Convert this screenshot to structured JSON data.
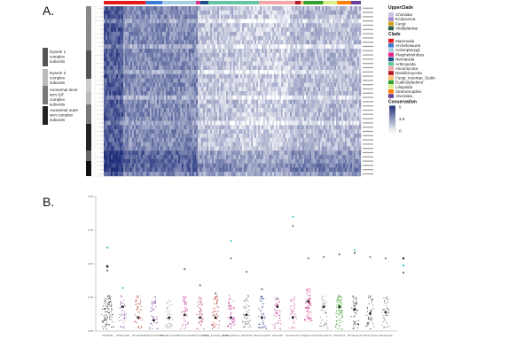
{
  "panels": {
    "a_label": "A.",
    "b_label": "B."
  },
  "chart_data": [
    {
      "type": "heatmap",
      "panel": "A.",
      "row_groups": [
        {
          "label": "Dynein 1 complex subunits",
          "shade": "#555555"
        },
        {
          "label": "Dynein 2 complex subunits",
          "shade": "#bbbbbb"
        },
        {
          "label": "Axonemal inner arm I1/f complex subunits",
          "shade": "#777777"
        },
        {
          "label": "Axonemal outer arm complex subunits",
          "shade": "#222222"
        }
      ],
      "column_clades": [
        "Mammalia",
        "Archelosauria",
        "Actinopterygii",
        "Platyhelminthes",
        "Nematoda",
        "Arthropoda",
        "Ascomycota",
        "Basidiomycota",
        "Fungi_Incertae_Sedis",
        "Eudicotyledons",
        "Liliopsida",
        "Stramenopiles",
        "Alveolata"
      ],
      "legend": {
        "upper_clade": {
          "title": "UpperClade",
          "items": [
            {
              "label": "Chordata",
              "color": "#c7c1df"
            },
            {
              "label": "Ecdysozoa",
              "color": "#a58fd0"
            },
            {
              "label": "Fungi",
              "color": "#d6a21c"
            },
            {
              "label": "Viridiplantae",
              "color": "#2e5f4f"
            }
          ]
        },
        "clade": {
          "title": "Clade",
          "items": [
            {
              "label": "Mammalia",
              "color": "#e31a1c"
            },
            {
              "label": "Archelosauria",
              "color": "#3a7bd5"
            },
            {
              "label": "Actinopterygii",
              "color": "#a6cee3"
            },
            {
              "label": "Platyhelminthes",
              "color": "#e7298a"
            },
            {
              "label": "Nematoda",
              "color": "#1f4e8c"
            },
            {
              "label": "Arthropoda",
              "color": "#66c2a5"
            },
            {
              "label": "Ascomycota",
              "color": "#f4a6a6"
            },
            {
              "label": "Basidiomycota",
              "color": "#b2182b"
            },
            {
              "label": "Fungi_Incertae_Sedis",
              "color": "#fdbf6f"
            },
            {
              "label": "Eudicotyledons",
              "color": "#33a02c"
            },
            {
              "label": "Liliopsida",
              "color": "#d9ef8b"
            },
            {
              "label": "Stramenopiles",
              "color": "#ff7f00"
            },
            {
              "label": "Alveolata",
              "color": "#6a3d9a"
            }
          ]
        },
        "conservation": {
          "title": "Conservation",
          "ticks": [
            "5",
            "3.5",
            "0"
          ],
          "low_color": "#ffffff",
          "high_color": "#1f2f7a"
        }
      }
    },
    {
      "type": "scatter",
      "panel": "B.",
      "categories": [
        "Chordata",
        "Arthropoda",
        "Nematoda",
        "Platyhelminthes",
        "Basidiomycota",
        "Ascomycota",
        "Microsporidia",
        "Fungi_Incertae_Sedis",
        "Eudicotyledons",
        "Liliopsida",
        "Stramenopiles",
        "Alveolata",
        "Amoebozoa",
        "Euglenozoa",
        "Apicomplexa",
        "Ciliophora",
        "Rhodophyta",
        "Chlorophyta",
        "Haptophyta"
      ],
      "ylim": [
        0,
        1
      ],
      "series": [
        {
          "values": [
            0.48,
            0.18,
            0.1,
            0.08,
            0.1,
            0.12,
            0.1,
            0.1,
            0.1,
            0.12,
            0.1,
            0.18,
            0.1,
            0.22,
            0.18,
            0.18,
            0.16,
            0.13,
            0.14
          ]
        },
        {
          "values": [
            0.62,
            0.32,
            null,
            null,
            null,
            null,
            null,
            null,
            0.67,
            null,
            null,
            null,
            0.85,
            null,
            null,
            null,
            0.6,
            null,
            null
          ]
        },
        {
          "values": [
            0.45,
            null,
            null,
            null,
            null,
            0.46,
            0.34,
            0.28,
            0.54,
            0.44,
            0.31,
            0.24,
            0.78,
            0.54,
            0.55,
            0.57,
            0.58,
            0.55,
            0.54
          ]
        }
      ],
      "legend_items": [
        {
          "color": "#222222"
        },
        {
          "color": "#2ec4c4"
        },
        {
          "color": "#777777"
        }
      ]
    }
  ]
}
